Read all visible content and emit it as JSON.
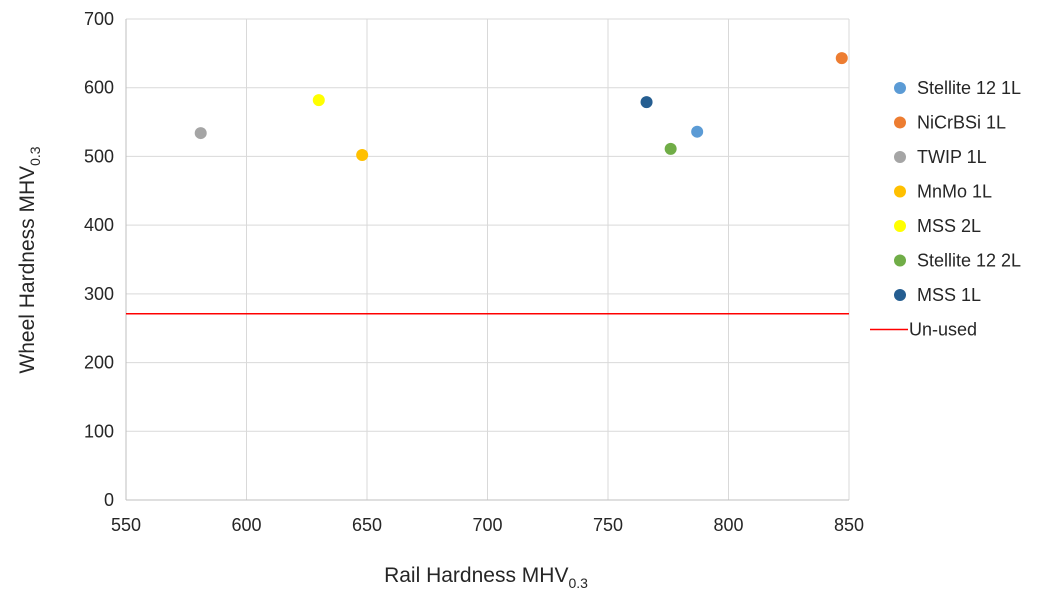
{
  "chart_data": {
    "type": "scatter",
    "xlabel": {
      "main": "Rail Hardness MHV",
      "sub": "0.3"
    },
    "ylabel": {
      "main": "Wheel Hardness MHV",
      "sub": "0.3"
    },
    "xlim": [
      550,
      850
    ],
    "ylim": [
      0,
      700
    ],
    "xticks": [
      550,
      600,
      650,
      700,
      750,
      800,
      850
    ],
    "yticks": [
      0,
      100,
      200,
      300,
      400,
      500,
      600,
      700
    ],
    "grid": "vertical-and-horizontal",
    "legend_position": "right",
    "series": [
      {
        "name": "Stellite 12 1L",
        "color": "#5b9bd5",
        "points": [
          [
            787,
            536
          ]
        ]
      },
      {
        "name": "NiCrBSi 1L",
        "color": "#ed7d31",
        "points": [
          [
            847,
            643
          ]
        ]
      },
      {
        "name": "TWIP 1L",
        "color": "#a5a5a5",
        "points": [
          [
            581,
            534
          ]
        ]
      },
      {
        "name": "MnMo 1L",
        "color": "#ffc000",
        "points": [
          [
            648,
            502
          ]
        ]
      },
      {
        "name": "MSS 2L",
        "color": "#ffff00",
        "points": [
          [
            630,
            582
          ]
        ]
      },
      {
        "name": "Stellite 12 2L",
        "color": "#70ad47",
        "points": [
          [
            776,
            511
          ]
        ]
      },
      {
        "name": "MSS 1L",
        "color": "#255e91",
        "points": [
          [
            766,
            579
          ]
        ]
      }
    ],
    "reference_lines": [
      {
        "name": "Un-used",
        "color": "#ff0000",
        "y": 271
      }
    ]
  }
}
